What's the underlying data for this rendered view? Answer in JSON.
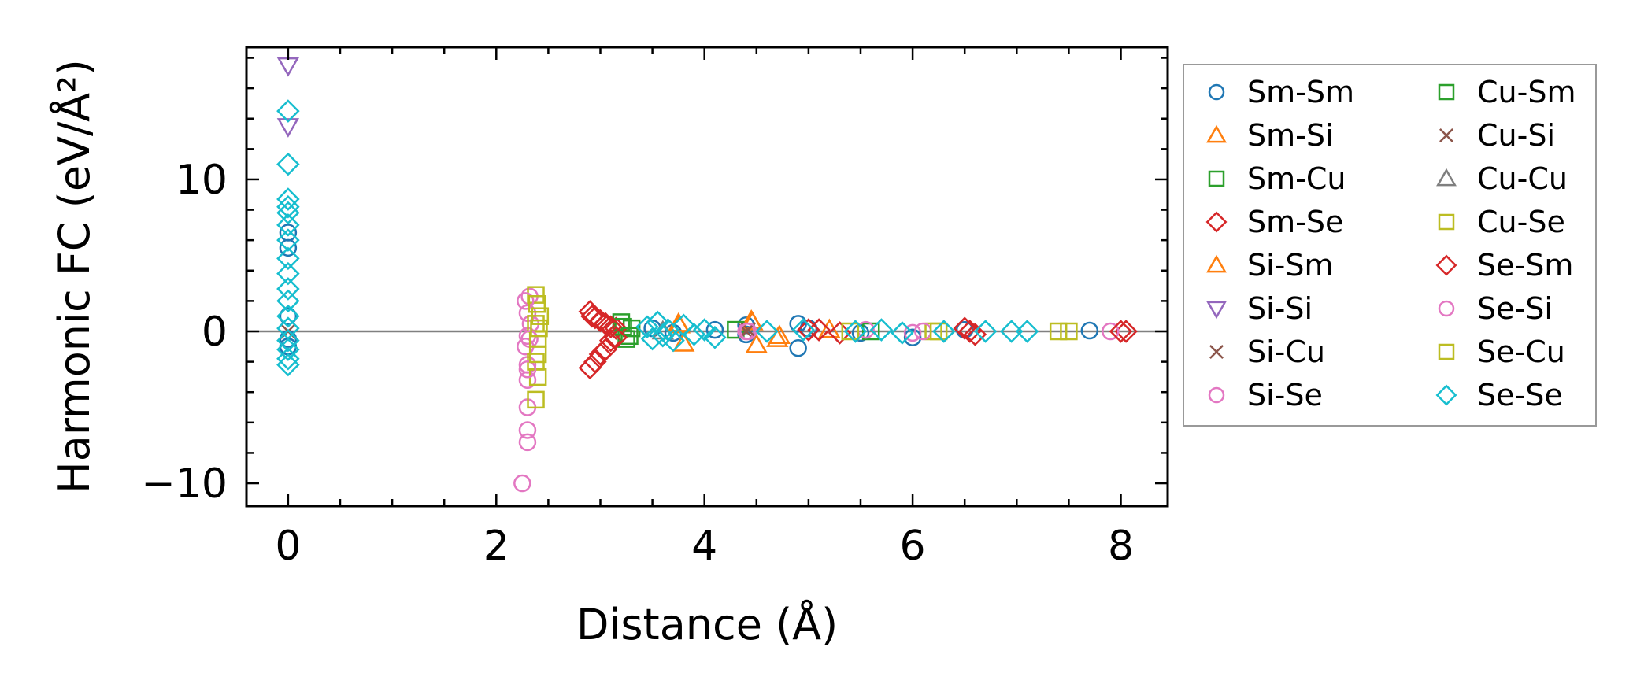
{
  "chart_data": {
    "type": "scatter",
    "xlabel": "Distance (Å)",
    "ylabel": "Harmonic FC (eV/Å²)",
    "xlim": [
      -0.4,
      8.45
    ],
    "ylim": [
      -11.5,
      18.7
    ],
    "xticks": [
      0,
      2,
      4,
      6,
      8
    ],
    "xtick_labels": [
      "0",
      "2",
      "4",
      "6",
      "8"
    ],
    "yticks": [
      -10,
      0,
      10
    ],
    "ytick_labels": [
      "−10",
      "0",
      "10"
    ],
    "zero_line": true,
    "grid": false,
    "legend_position": "right, outside plot",
    "legend_columns": 2,
    "series": [
      {
        "name": "Sm-Sm",
        "marker": "circle",
        "color": "#1f77b4",
        "points": [
          [
            0,
            6.5
          ],
          [
            0,
            5.5
          ],
          [
            0,
            1.0
          ],
          [
            0,
            -0.5
          ],
          [
            0,
            -1.0
          ],
          [
            3.5,
            0.2
          ],
          [
            3.7,
            -0.1
          ],
          [
            4.1,
            0.1
          ],
          [
            4.4,
            0.4
          ],
          [
            4.4,
            -0.2
          ],
          [
            4.9,
            0.5
          ],
          [
            4.9,
            -1.1
          ],
          [
            5.0,
            0.2
          ],
          [
            5.5,
            -0.1
          ],
          [
            6.0,
            -0.4
          ],
          [
            6.5,
            0.1
          ],
          [
            7.7,
            0.05
          ]
        ]
      },
      {
        "name": "Sm-Si",
        "marker": "triangle-up",
        "color": "#ff7f0e",
        "points": [
          [
            3.75,
            0.5
          ],
          [
            3.8,
            -0.8
          ],
          [
            4.45,
            0.7
          ],
          [
            4.5,
            -0.9
          ],
          [
            4.7,
            -0.5
          ],
          [
            5.2,
            0.1
          ]
        ]
      },
      {
        "name": "Sm-Cu",
        "marker": "square",
        "color": "#2ca02c",
        "points": [
          [
            3.2,
            0.6
          ],
          [
            3.25,
            -0.5
          ],
          [
            3.3,
            0.2
          ],
          [
            4.3,
            0.1
          ],
          [
            5.6,
            0.0
          ]
        ]
      },
      {
        "name": "Sm-Se",
        "marker": "diamond",
        "color": "#d62728",
        "points": [
          [
            2.9,
            1.3
          ],
          [
            2.9,
            -2.4
          ],
          [
            2.95,
            0.9
          ],
          [
            3.0,
            -1.5
          ],
          [
            3.05,
            0.5
          ],
          [
            3.1,
            -0.6
          ],
          [
            3.15,
            0.2
          ],
          [
            5.0,
            0.1
          ],
          [
            5.3,
            -0.1
          ],
          [
            6.5,
            0.2
          ],
          [
            6.6,
            -0.2
          ],
          [
            8.05,
            0.0
          ]
        ]
      },
      {
        "name": "Si-Sm",
        "marker": "triangle-up",
        "color": "#ff7f0e",
        "points": [
          [
            3.76,
            0.4
          ],
          [
            4.46,
            0.6
          ],
          [
            4.72,
            -0.3
          ]
        ]
      },
      {
        "name": "Si-Si",
        "marker": "triangle-down",
        "color": "#9467bd",
        "points": [
          [
            0,
            17.5
          ],
          [
            0,
            13.5
          ]
        ]
      },
      {
        "name": "Si-Cu",
        "marker": "x",
        "color": "#8c564b",
        "points": [
          [
            0,
            0.0
          ],
          [
            4.4,
            0.0
          ]
        ]
      },
      {
        "name": "Si-Se",
        "marker": "circle",
        "color": "#e377c2",
        "points": [
          [
            2.25,
            -10.0
          ],
          [
            2.3,
            -6.5
          ],
          [
            2.3,
            -7.3
          ],
          [
            2.3,
            -5.0
          ],
          [
            2.3,
            -3.2
          ],
          [
            2.3,
            -2.2
          ],
          [
            2.28,
            -1.0
          ],
          [
            2.3,
            1.2
          ],
          [
            2.32,
            2.3
          ],
          [
            2.3,
            -0.3
          ],
          [
            2.33,
            0.5
          ],
          [
            4.4,
            0.0
          ],
          [
            5.55,
            0.1
          ],
          [
            6.0,
            -0.1
          ],
          [
            7.9,
            0.0
          ]
        ]
      },
      {
        "name": "Cu-Sm",
        "marker": "square",
        "color": "#2ca02c",
        "points": [
          [
            3.22,
            0.3
          ],
          [
            3.28,
            -0.3
          ]
        ]
      },
      {
        "name": "Cu-Si",
        "marker": "x",
        "color": "#8c564b",
        "points": [
          [
            4.42,
            0.1
          ]
        ]
      },
      {
        "name": "Cu-Cu",
        "marker": "triangle-up",
        "color": "#7f7f7f",
        "points": [
          [
            3.6,
            0.0
          ]
        ]
      },
      {
        "name": "Cu-Se",
        "marker": "square",
        "color": "#bcbd22",
        "points": [
          [
            2.38,
            2.4
          ],
          [
            2.38,
            0.5
          ],
          [
            2.4,
            -0.5
          ],
          [
            2.38,
            -2.0
          ],
          [
            2.38,
            -4.5
          ],
          [
            2.4,
            -3.0
          ],
          [
            2.42,
            1.0
          ],
          [
            5.4,
            0.0
          ],
          [
            6.2,
            0.0
          ],
          [
            7.4,
            0.0
          ],
          [
            7.5,
            0.0
          ]
        ]
      },
      {
        "name": "Se-Sm",
        "marker": "diamond",
        "color": "#d62728",
        "points": [
          [
            2.92,
            1.0
          ],
          [
            2.95,
            -2.0
          ],
          [
            3.0,
            0.7
          ],
          [
            3.05,
            -1.2
          ],
          [
            3.1,
            0.3
          ],
          [
            3.15,
            -0.4
          ],
          [
            5.1,
            0.1
          ],
          [
            6.55,
            0.0
          ],
          [
            8.0,
            0.0
          ]
        ]
      },
      {
        "name": "Se-Si",
        "marker": "circle",
        "color": "#e377c2",
        "points": [
          [
            2.28,
            2.0
          ],
          [
            2.3,
            -2.5
          ],
          [
            2.32,
            -0.5
          ],
          [
            4.42,
            0.0
          ],
          [
            6.1,
            0.0
          ]
        ]
      },
      {
        "name": "Se-Cu",
        "marker": "square",
        "color": "#bcbd22",
        "points": [
          [
            2.39,
            1.8
          ],
          [
            2.4,
            -1.5
          ],
          [
            2.41,
            0.2
          ],
          [
            6.25,
            0.0
          ]
        ]
      },
      {
        "name": "Se-Se",
        "marker": "diamond",
        "color": "#17becf",
        "points": [
          [
            0,
            14.5
          ],
          [
            0,
            11.0
          ],
          [
            0,
            8.7
          ],
          [
            0,
            8.2
          ],
          [
            0,
            7.8
          ],
          [
            0,
            7.0
          ],
          [
            0,
            6.0
          ],
          [
            0,
            4.8
          ],
          [
            0,
            3.8
          ],
          [
            0,
            2.8
          ],
          [
            0,
            2.0
          ],
          [
            0,
            1.0
          ],
          [
            0,
            0.2
          ],
          [
            0,
            -0.6
          ],
          [
            0,
            -1.2
          ],
          [
            0,
            -1.8
          ],
          [
            0,
            -2.2
          ],
          [
            3.45,
            0.3
          ],
          [
            3.5,
            -0.5
          ],
          [
            3.55,
            0.6
          ],
          [
            3.6,
            -0.3
          ],
          [
            3.65,
            0.1
          ],
          [
            3.7,
            -0.6
          ],
          [
            3.8,
            0.4
          ],
          [
            3.9,
            -0.2
          ],
          [
            4.0,
            0.1
          ],
          [
            4.1,
            -0.4
          ],
          [
            4.6,
            0.0
          ],
          [
            4.95,
            0.1
          ],
          [
            5.45,
            0.0
          ],
          [
            5.7,
            0.1
          ],
          [
            5.9,
            -0.1
          ],
          [
            6.3,
            0.0
          ],
          [
            6.7,
            0.0
          ],
          [
            6.95,
            0.0
          ],
          [
            7.1,
            0.0
          ]
        ]
      }
    ]
  }
}
